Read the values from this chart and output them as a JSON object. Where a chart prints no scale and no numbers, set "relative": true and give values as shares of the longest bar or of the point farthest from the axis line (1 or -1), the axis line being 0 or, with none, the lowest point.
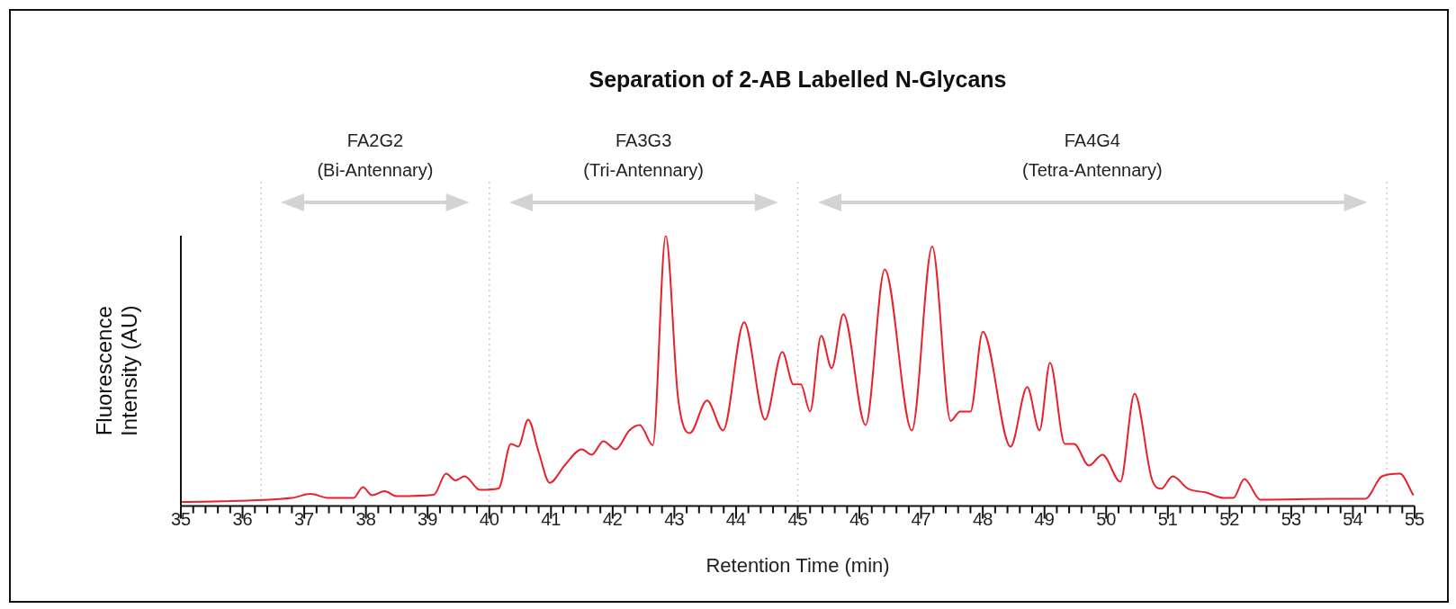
{
  "chart_data": {
    "type": "line",
    "title": "Separation of 2-AB Labelled N-Glycans",
    "xlabel": "Retention Time (min)",
    "ylabel": "Fluorescence\nIntensity (AU)",
    "relative": true,
    "marker": "none",
    "xlim": [
      35,
      55
    ],
    "xticks": [
      35,
      {
        "value": 35.2,
        "label": null
      },
      {
        "value": 35.4,
        "label": null
      },
      {
        "value": 35.6,
        "label": null
      },
      {
        "value": 35.8,
        "label": null
      },
      36,
      {
        "value": 36.2,
        "label": null
      },
      {
        "value": 36.4,
        "label": null
      },
      {
        "value": 36.6,
        "label": null
      },
      {
        "value": 36.8,
        "label": null
      },
      37,
      {
        "value": 37.2,
        "label": null
      },
      {
        "value": 37.4,
        "label": null
      },
      {
        "value": 37.6,
        "label": null
      },
      {
        "value": 37.8,
        "label": null
      },
      38,
      {
        "value": 38.2,
        "label": null
      },
      {
        "value": 38.4,
        "label": null
      },
      {
        "value": 38.6,
        "label": null
      },
      {
        "value": 38.8,
        "label": null
      },
      39,
      {
        "value": 39.2,
        "label": null
      },
      {
        "value": 39.4,
        "label": null
      },
      {
        "value": 39.6,
        "label": null
      },
      {
        "value": 39.8,
        "label": null
      },
      40,
      {
        "value": 40.2,
        "label": null
      },
      {
        "value": 40.4,
        "label": null
      },
      {
        "value": 40.6,
        "label": null
      },
      {
        "value": 40.8,
        "label": null
      },
      41,
      {
        "value": 41.2,
        "label": null
      },
      {
        "value": 41.4,
        "label": null
      },
      {
        "value": 41.6,
        "label": null
      },
      {
        "value": 41.8,
        "label": null
      },
      42,
      {
        "value": 42.2,
        "label": null
      },
      {
        "value": 42.4,
        "label": null
      },
      {
        "value": 42.6,
        "label": null
      },
      {
        "value": 42.8,
        "label": null
      },
      43,
      {
        "value": 43.2,
        "label": null
      },
      {
        "value": 43.4,
        "label": null
      },
      {
        "value": 43.6,
        "label": null
      },
      {
        "value": 43.8,
        "label": null
      },
      44,
      {
        "value": 44.2,
        "label": null
      },
      {
        "value": 44.4,
        "label": null
      },
      {
        "value": 44.6,
        "label": null
      },
      {
        "value": 44.8,
        "label": null
      },
      45,
      {
        "value": 45.2,
        "label": null
      },
      {
        "value": 45.4,
        "label": null
      },
      {
        "value": 45.6,
        "label": null
      },
      {
        "value": 45.8,
        "label": null
      },
      46,
      {
        "value": 46.2,
        "label": null
      },
      {
        "value": 46.4,
        "label": null
      },
      {
        "value": 46.6,
        "label": null
      },
      {
        "value": 46.8,
        "label": null
      },
      47,
      {
        "value": 47.2,
        "label": null
      },
      {
        "value": 47.4,
        "label": null
      },
      {
        "value": 47.6,
        "label": null
      },
      {
        "value": 47.8,
        "label": null
      },
      48,
      {
        "value": 48.2,
        "label": null
      },
      {
        "value": 48.4,
        "label": null
      },
      {
        "value": 48.6,
        "label": null
      },
      {
        "value": 48.8,
        "label": null
      },
      49,
      {
        "value": 49.2,
        "label": null
      },
      {
        "value": 49.4,
        "label": null
      },
      {
        "value": 49.6,
        "label": null
      },
      {
        "value": 49.8,
        "label": null
      },
      50,
      {
        "value": 50.2,
        "label": null
      },
      {
        "value": 50.4,
        "label": null
      },
      {
        "value": 50.6,
        "label": null
      },
      {
        "value": 50.8,
        "label": null
      },
      51,
      {
        "value": 51.2,
        "label": null
      },
      {
        "value": 51.4,
        "label": null
      },
      {
        "value": 51.6,
        "label": null
      },
      {
        "value": 51.8,
        "label": null
      },
      52,
      {
        "value": 52.2,
        "label": null
      },
      {
        "value": 52.4,
        "label": null
      },
      {
        "value": 52.6,
        "label": null
      },
      {
        "value": 52.8,
        "label": null
      },
      53,
      {
        "value": 53.2,
        "label": null
      },
      {
        "value": 53.4,
        "label": null
      },
      {
        "value": 53.6,
        "label": null
      },
      {
        "value": 53.8,
        "label": null
      },
      54,
      {
        "value": 54.2,
        "label": null
      },
      {
        "value": 54.4,
        "label": null
      },
      {
        "value": 54.6,
        "label": null
      },
      {
        "value": 54.8,
        "label": null
      },
      55
    ],
    "x": [
      35,
      36.8,
      37.1,
      37.4,
      37.8,
      37.95,
      38.1,
      38.3,
      38.5,
      39.1,
      39.3,
      39.45,
      39.6,
      39.85,
      40.15,
      40.35,
      40.47,
      40.63,
      40.8,
      40.98,
      41.22,
      41.5,
      41.66,
      41.85,
      42.05,
      42.27,
      42.44,
      42.65,
      42.86,
      43.06,
      43.25,
      43.53,
      43.79,
      44.13,
      44.47,
      44.75,
      44.93,
      45.05,
      45.2,
      45.38,
      45.55,
      45.74,
      46.1,
      46.41,
      46.85,
      47.18,
      47.48,
      47.63,
      47.8,
      48.0,
      48.45,
      48.72,
      48.92,
      49.09,
      49.33,
      49.48,
      49.72,
      49.94,
      50.23,
      50.46,
      50.74,
      50.89,
      51.08,
      51.33,
      51.62,
      51.91,
      52.06,
      52.24,
      52.5,
      53.71,
      54.2,
      54.47,
      54.76,
      54.98
    ],
    "series": [
      {
        "color": "#e8222c",
        "values": [
          0.015,
          0.03,
          0.045,
          0.03,
          0.03,
          0.07,
          0.04,
          0.055,
          0.037,
          0.042,
          0.12,
          0.095,
          0.11,
          0.06,
          0.065,
          0.23,
          0.22,
          0.32,
          0.2,
          0.086,
          0.15,
          0.21,
          0.19,
          0.24,
          0.21,
          0.28,
          0.3,
          0.225,
          1.0,
          0.4,
          0.27,
          0.39,
          0.28,
          0.68,
          0.32,
          0.57,
          0.45,
          0.45,
          0.35,
          0.63,
          0.51,
          0.71,
          0.3,
          0.875,
          0.28,
          0.96,
          0.315,
          0.35,
          0.35,
          0.645,
          0.22,
          0.44,
          0.28,
          0.53,
          0.23,
          0.23,
          0.15,
          0.19,
          0.09,
          0.415,
          0.1,
          0.064,
          0.11,
          0.064,
          0.05,
          0.03,
          0.03,
          0.1,
          0.024,
          0.027,
          0.027,
          0.11,
          0.12,
          0.04
        ]
      }
    ],
    "ref_lines": [
      {
        "axis": "x",
        "value": 36.3,
        "color": "#cccccc",
        "line_style": "dotted"
      },
      {
        "axis": "x",
        "value": 40.0,
        "color": "#cccccc",
        "line_style": "dotted"
      },
      {
        "axis": "x",
        "value": 45.0,
        "color": "#cccccc",
        "line_style": "dotted"
      },
      {
        "axis": "x",
        "value": 54.55,
        "color": "#cccccc",
        "line_style": "dotted"
      }
    ],
    "annotations": [
      "FA2G2\n(Bi-Antennary)",
      "FA3G3\n(Tri-Antennary)",
      "FA4G4\n(Tetra-Antennary)"
    ]
  }
}
